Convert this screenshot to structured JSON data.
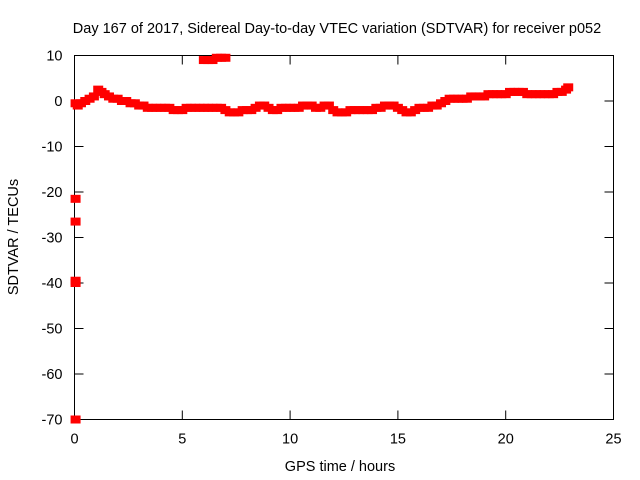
{
  "chart_data": {
    "type": "scatter",
    "title": "Day 167 of 2017, Sidereal Day-to-day VTEC variation (SDTVAR) for receiver p052",
    "xlabel": "GPS time / hours",
    "ylabel": "SDTVAR / TECUs",
    "xlim": [
      0,
      25
    ],
    "ylim": [
      -70,
      10
    ],
    "xticks": [
      0,
      5,
      10,
      15,
      20,
      25
    ],
    "yticks": [
      10,
      0,
      -10,
      -20,
      -30,
      -40,
      -50,
      -60,
      -70
    ],
    "grid": false,
    "legend": "none",
    "series_color": "#ff0000",
    "series": [
      {
        "x": [
          0.05,
          0.15,
          0.3,
          0.5,
          0.7,
          0.9,
          1.1,
          1.25,
          1.4,
          1.6,
          1.8,
          2.0,
          2.2,
          2.4,
          2.6,
          2.8,
          3.0,
          3.2,
          3.4,
          3.6,
          3.8,
          4.0,
          4.2,
          4.4,
          4.6,
          4.8,
          5.0,
          5.2,
          5.4,
          5.6,
          5.8,
          6.0,
          6.2,
          6.4,
          6.6,
          6.8,
          7.0,
          7.2,
          7.4,
          7.6,
          7.8,
          8.0,
          8.2,
          8.4,
          8.6,
          8.8,
          9.0,
          9.2,
          9.4,
          9.6,
          9.8,
          10.0,
          10.2,
          10.4,
          10.6,
          10.8,
          11.0,
          11.2,
          11.4,
          11.6,
          11.8,
          12.0,
          12.2,
          12.4,
          12.6,
          12.8,
          13.0,
          13.2,
          13.4,
          13.6,
          13.8,
          14.0,
          14.2,
          14.4,
          14.6,
          14.8,
          15.0,
          15.2,
          15.4,
          15.6,
          15.8,
          16.0,
          16.2,
          16.4,
          16.6,
          16.8,
          17.0,
          17.2,
          17.4,
          17.6,
          17.8,
          18.0,
          18.2,
          18.4,
          18.6,
          18.8,
          19.0,
          19.2,
          19.4,
          19.6,
          19.8,
          20.0,
          20.2,
          20.4,
          20.6,
          20.8,
          21.0,
          21.2,
          21.4,
          21.6,
          21.8,
          22.0,
          22.2,
          22.4,
          22.6,
          22.8,
          22.9,
          6.0,
          6.2,
          6.4,
          6.6,
          6.8,
          7.0,
          0.05,
          0.05,
          0.05,
          0.05,
          0.05
        ],
        "y": [
          -0.5,
          -1.0,
          -0.5,
          0.0,
          0.5,
          1.0,
          2.5,
          2.0,
          1.5,
          1.0,
          0.5,
          0.5,
          0.0,
          0.0,
          -0.5,
          -0.5,
          -1.0,
          -1.0,
          -1.5,
          -1.5,
          -1.5,
          -1.5,
          -1.5,
          -1.5,
          -2.0,
          -2.0,
          -2.0,
          -1.5,
          -1.5,
          -1.5,
          -1.5,
          -1.5,
          -1.5,
          -1.5,
          -1.5,
          -1.5,
          -2.0,
          -2.5,
          -2.5,
          -2.5,
          -2.0,
          -2.0,
          -2.0,
          -1.5,
          -1.0,
          -1.0,
          -1.5,
          -2.0,
          -2.0,
          -1.5,
          -1.5,
          -1.5,
          -1.5,
          -1.5,
          -1.0,
          -1.0,
          -1.0,
          -1.5,
          -1.5,
          -1.0,
          -1.0,
          -2.0,
          -2.5,
          -2.5,
          -2.5,
          -2.0,
          -2.0,
          -2.0,
          -2.0,
          -2.0,
          -2.0,
          -1.5,
          -1.5,
          -1.0,
          -1.0,
          -1.0,
          -1.5,
          -2.0,
          -2.5,
          -2.5,
          -2.0,
          -1.5,
          -1.5,
          -1.5,
          -1.0,
          -1.0,
          -0.5,
          0.0,
          0.5,
          0.5,
          0.5,
          0.5,
          0.5,
          1.0,
          1.0,
          1.0,
          1.0,
          1.5,
          1.5,
          1.5,
          1.5,
          1.5,
          2.0,
          2.0,
          2.0,
          2.0,
          1.5,
          1.5,
          1.5,
          1.5,
          1.5,
          1.5,
          1.5,
          2.0,
          2.0,
          2.5,
          3.0,
          9.0,
          9.0,
          9.0,
          9.5,
          9.5,
          9.5,
          -21.5,
          -26.5,
          -39.5,
          -40.0,
          -70.0
        ]
      }
    ]
  }
}
